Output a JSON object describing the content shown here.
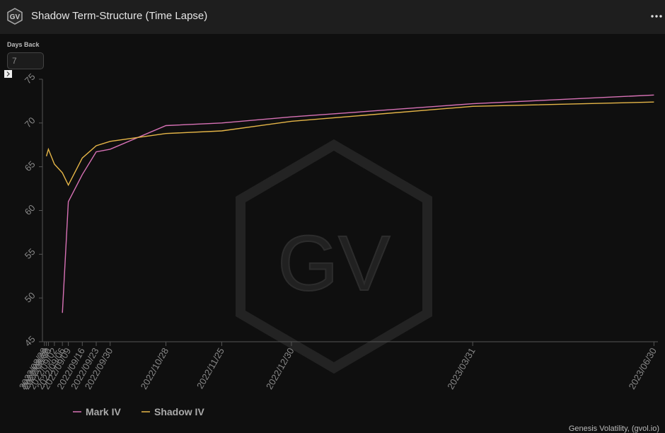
{
  "header": {
    "logo": "GV",
    "title": "Shadow Term-Structure (Time Lapse)"
  },
  "days_back": {
    "label": "Days Back",
    "value": "7"
  },
  "footer": "Genesis Volatility, (gvol.io)",
  "chart_data": {
    "type": "line",
    "watermark": "GV",
    "x": [
      "2022/08/29",
      "2022/08/30",
      "2022/09/02",
      "2022/09/06",
      "2022/09/09",
      "2022/09/16",
      "2022/09/23",
      "2022/09/30",
      "2022/10/28",
      "2022/11/25",
      "2022/12/30",
      "2023/03/31",
      "2023/06/30"
    ],
    "series": [
      {
        "name": "Mark IV",
        "color": "#d872b6",
        "values": [
          null,
          null,
          null,
          48.3,
          61.0,
          64.1,
          66.7,
          67.0,
          69.7,
          70.0,
          70.7,
          72.2,
          73.2
        ]
      },
      {
        "name": "Shadow IV",
        "color": "#e6b648",
        "values": [
          66.2,
          67.0,
          65.3,
          64.3,
          62.9,
          66.0,
          67.4,
          67.9,
          68.8,
          69.1,
          70.2,
          71.9,
          72.4
        ]
      }
    ],
    "xlim": [
      "2022/08/27",
      "2023/07/02"
    ],
    "xticks": [
      "2022/08/28",
      "2022/08/29",
      "2022/08/30",
      "2022/09/02",
      "2022/09/06",
      "2022/09/09",
      "2022/09/16",
      "2022/09/23",
      "2022/09/30",
      "2022/10/28",
      "2022/11/25",
      "2022/12/30",
      "2023/03/31",
      "2023/06/30"
    ],
    "ylim": [
      45,
      75
    ],
    "yticks": [
      45,
      50,
      55,
      60,
      65,
      70,
      75
    ],
    "legend": "bottom-left"
  }
}
